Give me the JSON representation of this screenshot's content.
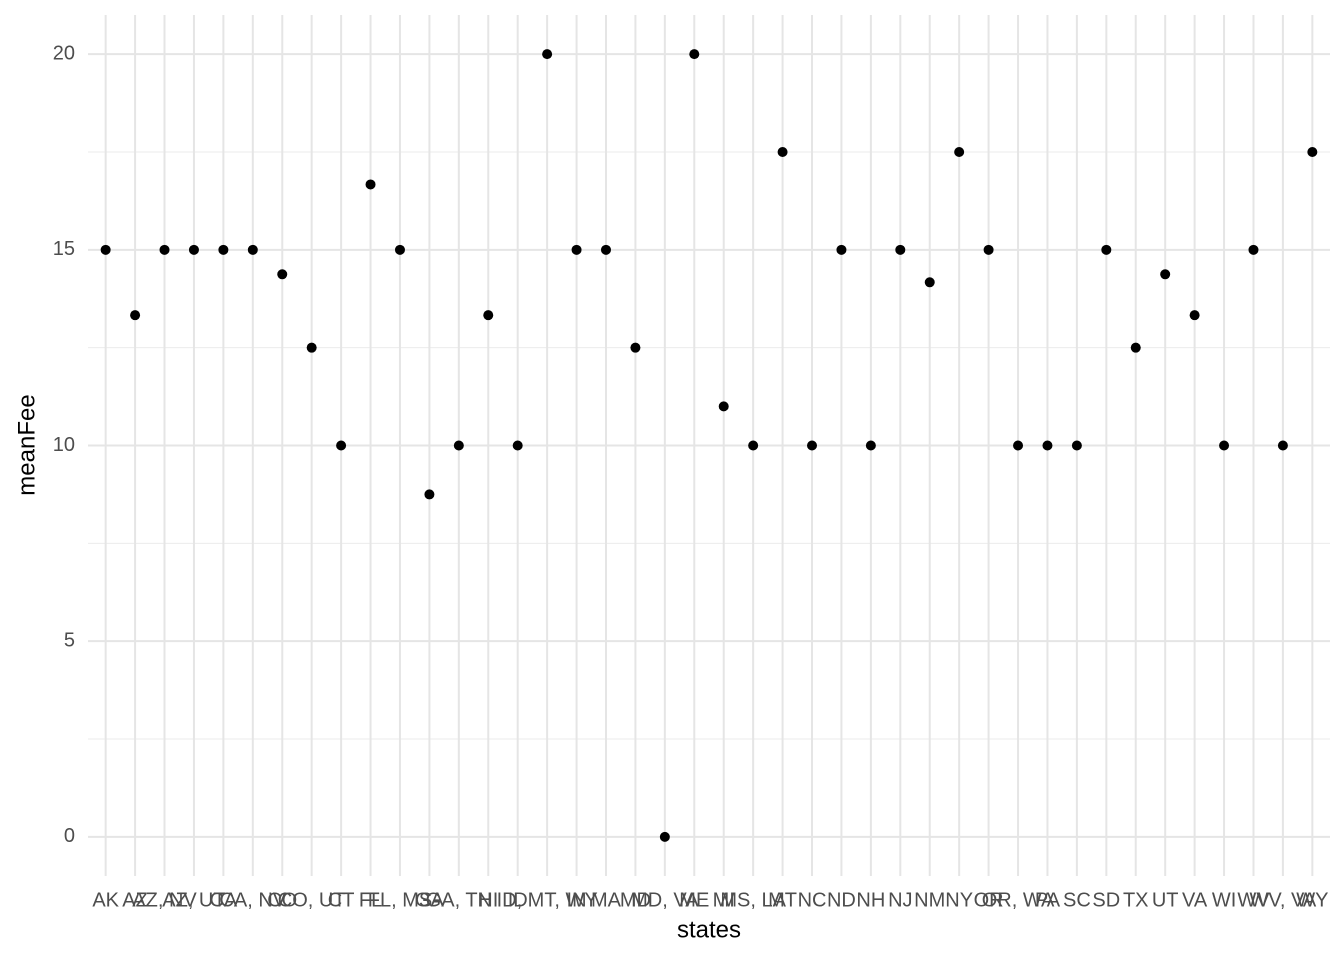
{
  "chart_data": {
    "type": "scatter",
    "x_label": "states",
    "y_label": "meanFee",
    "categories": [
      "AK",
      "AZ",
      "AZ, NV",
      "AZ, UT",
      "CA",
      "CA, NV",
      "CO",
      "CO, UT",
      "CT",
      "FL",
      "FL, MS",
      "GA",
      "GA, TN",
      "HI",
      "ID",
      "ID, MT, WY",
      "IN",
      "MA",
      "MD",
      "MD, VA",
      "ME",
      "MI",
      "MS, LA",
      "MT",
      "NC",
      "ND",
      "NH",
      "NJ",
      "NM",
      "NY",
      "OR",
      "OR, WA",
      "PA",
      "SC",
      "SD",
      "TX",
      "UT",
      "VA",
      "WI",
      "WV",
      "WV, VA",
      "WY"
    ],
    "values": [
      15,
      13.33,
      15,
      15,
      15,
      15,
      14.375,
      12.5,
      10,
      16.67,
      15,
      8.75,
      10,
      13.33,
      10,
      20,
      15,
      15,
      12.5,
      0,
      20,
      11,
      10,
      17.5,
      10,
      15,
      10,
      15,
      14.17,
      17.5,
      15,
      10,
      10,
      10,
      15,
      12.5,
      14.375,
      13.33,
      10,
      15,
      10,
      17.5
    ],
    "color": "#000000",
    "ylim": [
      -1,
      21
    ],
    "yticks": [
      0,
      5,
      10,
      15,
      20
    ],
    "grid": true
  }
}
